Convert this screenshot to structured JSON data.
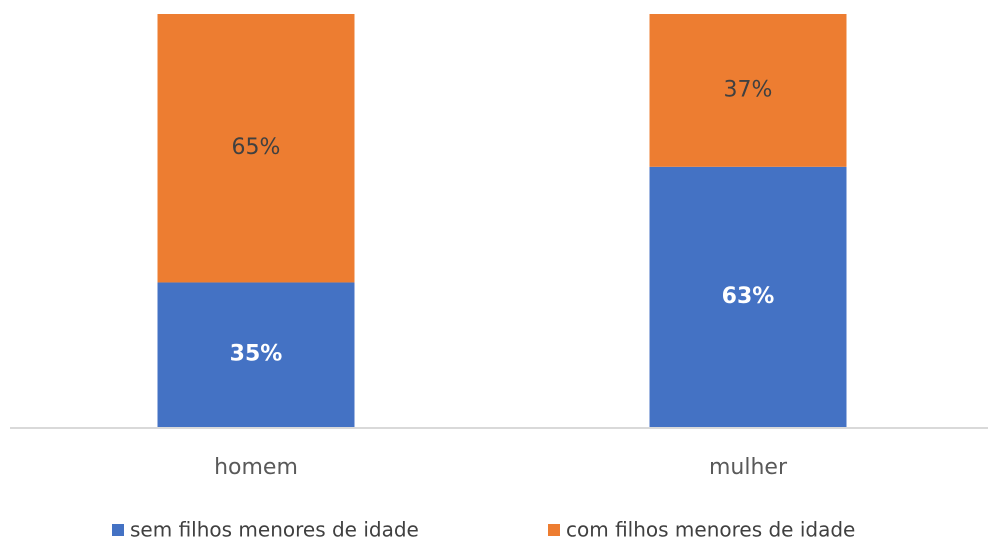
{
  "chart_data": {
    "type": "stacked-bar",
    "categories": [
      "homem",
      "mulher"
    ],
    "series": [
      {
        "name": "sem filhos menores de idade",
        "color": "#4472c4",
        "values": [
          35,
          63
        ],
        "value_labels": [
          "35%",
          "63%"
        ]
      },
      {
        "name": "com filhos menores de idade",
        "color": "#ed7d31",
        "values": [
          65,
          37
        ],
        "value_labels": [
          "65%",
          "37%"
        ]
      }
    ]
  }
}
